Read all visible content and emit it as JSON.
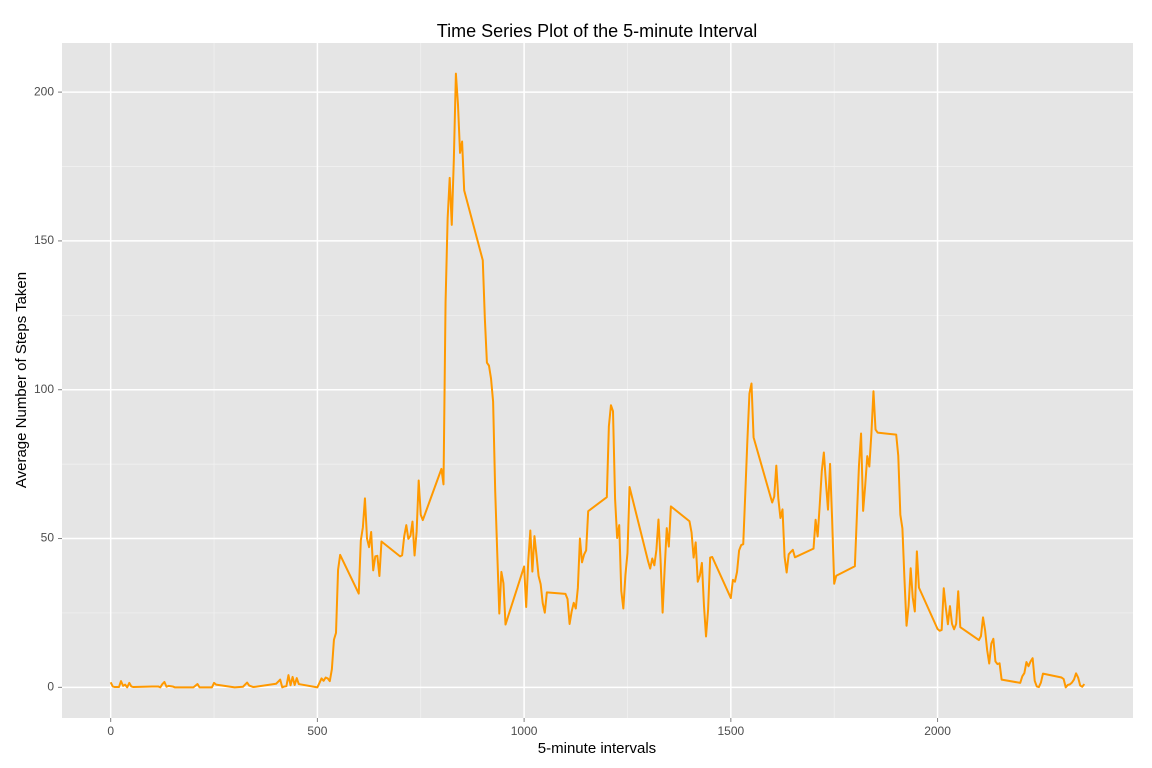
{
  "chart_data": {
    "type": "line",
    "title": "Time Series Plot of the 5-minute Interval",
    "x_label": "5-minute intervals",
    "y_label": "Average Number of Steps Taken",
    "color": "#ff9900",
    "x": [
      0,
      5,
      10,
      20,
      25,
      30,
      35,
      40,
      45,
      50,
      55,
      100,
      115,
      120,
      125,
      130,
      135,
      140,
      150,
      155,
      200,
      210,
      215,
      240,
      245,
      250,
      255,
      300,
      320,
      330,
      335,
      345,
      400,
      410,
      415,
      420,
      425,
      430,
      435,
      440,
      445,
      450,
      455,
      500,
      510,
      515,
      520,
      525,
      530,
      535,
      540,
      545,
      550,
      555,
      600,
      605,
      610,
      615,
      620,
      625,
      630,
      635,
      640,
      645,
      650,
      655,
      700,
      705,
      710,
      715,
      720,
      725,
      730,
      735,
      740,
      745,
      750,
      755,
      800,
      805,
      810,
      815,
      820,
      825,
      830,
      835,
      840,
      845,
      850,
      855,
      900,
      905,
      910,
      915,
      920,
      925,
      930,
      935,
      940,
      945,
      950,
      955,
      1000,
      1005,
      1010,
      1015,
      1020,
      1025,
      1030,
      1035,
      1040,
      1045,
      1050,
      1055,
      1100,
      1105,
      1110,
      1115,
      1120,
      1125,
      1130,
      1135,
      1140,
      1145,
      1150,
      1155,
      1200,
      1205,
      1210,
      1215,
      1220,
      1225,
      1230,
      1235,
      1240,
      1245,
      1250,
      1255,
      1300,
      1305,
      1310,
      1315,
      1320,
      1325,
      1330,
      1335,
      1340,
      1345,
      1350,
      1355,
      1400,
      1405,
      1410,
      1415,
      1420,
      1425,
      1430,
      1435,
      1440,
      1445,
      1450,
      1455,
      1500,
      1505,
      1510,
      1515,
      1520,
      1525,
      1530,
      1535,
      1540,
      1545,
      1550,
      1555,
      1600,
      1605,
      1610,
      1615,
      1620,
      1625,
      1630,
      1635,
      1640,
      1645,
      1650,
      1655,
      1700,
      1705,
      1710,
      1715,
      1720,
      1725,
      1730,
      1735,
      1740,
      1745,
      1750,
      1755,
      1800,
      1805,
      1810,
      1815,
      1820,
      1825,
      1830,
      1835,
      1840,
      1845,
      1850,
      1855,
      1900,
      1905,
      1910,
      1915,
      1920,
      1925,
      1930,
      1935,
      1940,
      1945,
      1950,
      1955,
      2000,
      2005,
      2010,
      2015,
      2020,
      2025,
      2030,
      2035,
      2040,
      2045,
      2050,
      2055,
      2100,
      2105,
      2110,
      2115,
      2120,
      2125,
      2130,
      2135,
      2140,
      2145,
      2150,
      2155,
      2200,
      2205,
      2210,
      2215,
      2220,
      2225,
      2230,
      2235,
      2240,
      2245,
      2250,
      2255,
      2300,
      2305,
      2310,
      2315,
      2320,
      2325,
      2330,
      2335,
      2340,
      2345,
      2350,
      2355
    ],
    "values": [
      1.7,
      0.3,
      0.1,
      0.1,
      2.1,
      0.5,
      0.9,
      0,
      1.5,
      0.3,
      0.1,
      0.3,
      0.3,
      0,
      1.1,
      1.8,
      0.2,
      0.5,
      0.3,
      0,
      0,
      1.1,
      0,
      0,
      0,
      1.5,
      0.9,
      0,
      0.2,
      1.6,
      0.6,
      0.1,
      1.2,
      2.6,
      0,
      0.3,
      0.4,
      4.1,
      0.7,
      3.5,
      0.8,
      3.1,
      1.1,
      0,
      3,
      2.2,
      3.3,
      3,
      2.1,
      6.1,
      16,
      18.3,
      39.5,
      44.5,
      31.5,
      49.3,
      53.8,
      63.5,
      50,
      47.1,
      52.2,
      39.3,
      44,
      44.2,
      37.4,
      49,
      44,
      44.4,
      50.8,
      54.5,
      49.9,
      50.9,
      55.7,
      44.3,
      52.3,
      69.5,
      58,
      56.2,
      73.4,
      68.2,
      129.4,
      157.5,
      171.2,
      155.4,
      177.3,
      206.2,
      195.9,
      179.6,
      183.4,
      167,
      143.5,
      124,
      109.1,
      108.1,
      103.7,
      96,
      66.2,
      45.2,
      24.8,
      38.8,
      35,
      21.1,
      40.6,
      27,
      42.4,
      52.7,
      38.9,
      50.8,
      44.3,
      37.4,
      34.7,
      28.3,
      25.1,
      31.9,
      31.4,
      29.7,
      21.3,
      25.5,
      28.4,
      26.5,
      33.4,
      50,
      42,
      44.6,
      46,
      59.2,
      63.9,
      87.7,
      94.8,
      92.8,
      63.4,
      50.2,
      54.5,
      32.4,
      26.5,
      37.7,
      45.1,
      67.3,
      42.3,
      39.9,
      43.3,
      41,
      46.2,
      56.4,
      42.8,
      25.1,
      40,
      53.5,
      47.3,
      60.8,
      55.8,
      52,
      43.6,
      48.7,
      35.5,
      37.5,
      41.8,
      27.5,
      17.1,
      26.1,
      43.6,
      43.8,
      30,
      36.1,
      35.5,
      38.8,
      46,
      47.8,
      48.1,
      65.3,
      82.9,
      98.7,
      102.1,
      84,
      62.1,
      64.1,
      74.5,
      63.2,
      56.9,
      59.8,
      43.9,
      38.6,
      44.7,
      45.5,
      46.2,
      43.7,
      46.6,
      56.3,
      50.7,
      61.2,
      72.7,
      78.9,
      68.9,
      59.7,
      75.1,
      56.5,
      34.8,
      37.5,
      40.7,
      58,
      74.7,
      85.3,
      59.3,
      67.8,
      77.7,
      74.2,
      85.3,
      99.5,
      86.6,
      85.6,
      84.9,
      77.8,
      58,
      53.4,
      36.3,
      20.7,
      27.4,
      40,
      30.2,
      25.5,
      45.7,
      33.5,
      19.6,
      19,
      19.3,
      33.3,
      26.8,
      21.2,
      27.3,
      21.3,
      19.5,
      21.3,
      32.3,
      20.2,
      15.9,
      17.2,
      23.5,
      19.2,
      12.5,
      8,
      14.7,
      16.3,
      8.7,
      7.8,
      8.1,
      2.6,
      1.5,
      3.7,
      4.8,
      8.5,
      7.1,
      8.7,
      9.8,
      2.2,
      0.3,
      0.1,
      1.6,
      4.6,
      3.3,
      2.8,
      0,
      0.8,
      1,
      1.6,
      2.6,
      4.7,
      3.3,
      0.6,
      0.2,
      1.1
    ],
    "xlim": [
      -117.75,
      2472.75
    ],
    "xticks": [
      0,
      500,
      1000,
      1500,
      2000
    ],
    "ylim": [
      -10.3,
      216.5
    ],
    "yticks": [
      0,
      50,
      100,
      150,
      200
    ],
    "grid": true
  }
}
